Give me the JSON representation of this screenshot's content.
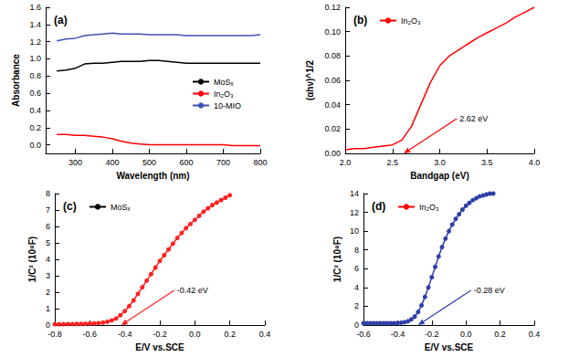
{
  "chart_data": [
    {
      "type": "line",
      "panel": "(a)",
      "x_label": "Wavelength (nm)",
      "y_label": "Absorbance",
      "marker": "none",
      "line_style": "solid",
      "grid": false,
      "legend": "middle right",
      "x": [
        250,
        275,
        300,
        325,
        350,
        375,
        400,
        425,
        450,
        475,
        500,
        525,
        550,
        575,
        600,
        625,
        650,
        675,
        700,
        725,
        750,
        775,
        800
      ],
      "series": [
        {
          "name": "MoSₓ",
          "color": "#000000",
          "values": [
            0.86,
            0.87,
            0.89,
            0.94,
            0.95,
            0.95,
            0.96,
            0.97,
            0.97,
            0.97,
            0.98,
            0.98,
            0.97,
            0.96,
            0.95,
            0.95,
            0.95,
            0.95,
            0.95,
            0.95,
            0.95,
            0.95,
            0.95
          ]
        },
        {
          "name": "In₂O₃",
          "color": "#ff0000",
          "values": [
            0.12,
            0.12,
            0.11,
            0.11,
            0.1,
            0.09,
            0.07,
            0.04,
            0.02,
            0.01,
            0.0,
            0.0,
            0.0,
            0.0,
            0.0,
            0.0,
            0.0,
            0.0,
            0.0,
            -0.01,
            -0.01,
            -0.01,
            -0.01
          ]
        },
        {
          "name": "10-MIO",
          "color": "#3f51b5",
          "values": [
            1.21,
            1.23,
            1.24,
            1.27,
            1.28,
            1.29,
            1.3,
            1.29,
            1.29,
            1.29,
            1.28,
            1.28,
            1.28,
            1.28,
            1.27,
            1.27,
            1.27,
            1.27,
            1.27,
            1.27,
            1.27,
            1.27,
            1.28
          ]
        }
      ],
      "xlim": [
        220,
        800
      ],
      "xticks": [
        300,
        400,
        500,
        600,
        700,
        800
      ],
      "ylim": [
        -0.1,
        1.6
      ],
      "yticks": [
        {
          "value": 0,
          "label": "0.0"
        },
        0.2,
        0.4,
        0.6,
        0.8,
        {
          "value": 1,
          "label": "1.0"
        },
        1.2,
        1.4,
        1.6
      ]
    },
    {
      "type": "line",
      "panel": "(b)",
      "x_label": "Bandgap (eV)",
      "y_label": "(αhν)^1/2",
      "marker": "none",
      "line_style": "solid",
      "grid": false,
      "legend": "upper left",
      "x": [
        2.0,
        2.1,
        2.2,
        2.3,
        2.4,
        2.5,
        2.6,
        2.7,
        2.8,
        2.9,
        3.0,
        3.1,
        3.2,
        3.3,
        3.4,
        3.5,
        3.6,
        3.7,
        3.8,
        3.9,
        4.0
      ],
      "series": [
        {
          "name": "In₂O₃",
          "color": "#ff0000",
          "values": [
            0.003,
            0.004,
            0.004,
            0.005,
            0.006,
            0.007,
            0.011,
            0.022,
            0.04,
            0.058,
            0.072,
            0.08,
            0.085,
            0.09,
            0.095,
            0.099,
            0.103,
            0.107,
            0.112,
            0.116,
            0.12
          ]
        }
      ],
      "annotation": {
        "text": "2.62 eV",
        "x": 2.62,
        "y": 0
      },
      "xlim": [
        2,
        4
      ],
      "xticks": [
        {
          "value": 2,
          "label": "2.0"
        },
        2.5,
        {
          "value": 3,
          "label": "3.0"
        },
        3.5,
        {
          "value": 4,
          "label": "4.0"
        }
      ],
      "ylim": [
        0,
        0.12
      ],
      "yticks": [
        {
          "value": 0,
          "label": "0.00"
        },
        0.02,
        0.04,
        0.06,
        0.08,
        {
          "value": 0.1,
          "label": "0.10"
        },
        0.12
      ]
    },
    {
      "type": "line",
      "panel": "(c)",
      "x_label": "E/V vs.SCE",
      "y_label": "1/C² (10⁸F)",
      "marker": "circle",
      "line_style": "solid",
      "grid": false,
      "legend": "upper left",
      "x": [
        -0.8,
        -0.775,
        -0.75,
        -0.725,
        -0.7,
        -0.675,
        -0.65,
        -0.625,
        -0.6,
        -0.575,
        -0.55,
        -0.525,
        -0.5,
        -0.475,
        -0.45,
        -0.425,
        -0.4,
        -0.375,
        -0.35,
        -0.325,
        -0.3,
        -0.275,
        -0.25,
        -0.225,
        -0.2,
        -0.175,
        -0.15,
        -0.125,
        -0.1,
        -0.075,
        -0.05,
        -0.025,
        0,
        0.025,
        0.05,
        0.075,
        0.1,
        0.125,
        0.15,
        0.175,
        0.2
      ],
      "series": [
        {
          "name": "MoSₓ",
          "color": "#ff2020",
          "values": [
            0.05,
            0.05,
            0.05,
            0.06,
            0.06,
            0.07,
            0.07,
            0.08,
            0.09,
            0.1,
            0.12,
            0.15,
            0.2,
            0.28,
            0.4,
            0.6,
            0.85,
            1.15,
            1.5,
            1.9,
            2.3,
            2.7,
            3.1,
            3.5,
            3.9,
            4.25,
            4.6,
            4.95,
            5.3,
            5.6,
            5.9,
            6.15,
            6.4,
            6.65,
            6.9,
            7.1,
            7.3,
            7.45,
            7.6,
            7.75,
            7.9
          ]
        }
      ],
      "annotation": {
        "text": "-0.42 eV",
        "x": -0.42,
        "y": 0
      },
      "xlim": [
        -0.8,
        0.4
      ],
      "xticks": [
        -0.8,
        -0.6,
        -0.4,
        -0.2,
        {
          "value": 0,
          "label": "0.0"
        },
        0.2,
        0.4
      ],
      "ylim": [
        0,
        8
      ],
      "yticks": [
        0,
        1,
        2,
        3,
        4,
        5,
        6,
        7,
        8
      ]
    },
    {
      "type": "line",
      "panel": "(d)",
      "x_label": "E/V vs.SCE",
      "y_label": "1/C² (10⁸F)",
      "marker": "circle",
      "line_style": "solid",
      "grid": false,
      "legend": "upper left",
      "x": [
        -0.6,
        -0.58,
        -0.56,
        -0.54,
        -0.52,
        -0.5,
        -0.48,
        -0.46,
        -0.44,
        -0.42,
        -0.4,
        -0.38,
        -0.36,
        -0.34,
        -0.32,
        -0.3,
        -0.28,
        -0.26,
        -0.24,
        -0.22,
        -0.2,
        -0.18,
        -0.16,
        -0.14,
        -0.12,
        -0.1,
        -0.08,
        -0.06,
        -0.04,
        -0.02,
        0,
        0.02,
        0.04,
        0.06,
        0.08,
        0.1,
        0.12,
        0.14,
        0.16
      ],
      "series": [
        {
          "name": "In₂O₃",
          "color": "#2f3fa8",
          "values": [
            0.2,
            0.2,
            0.2,
            0.2,
            0.2,
            0.2,
            0.2,
            0.2,
            0.2,
            0.2,
            0.22,
            0.25,
            0.3,
            0.4,
            0.6,
            0.9,
            1.4,
            2.1,
            3.0,
            4.0,
            5.1,
            6.2,
            7.3,
            8.3,
            9.2,
            10.0,
            10.7,
            11.3,
            11.8,
            12.3,
            12.7,
            13.0,
            13.3,
            13.5,
            13.7,
            13.8,
            13.9,
            14.0,
            14.0
          ]
        }
      ],
      "annotation": {
        "text": "-0.28 eV",
        "x": -0.28,
        "y": 0
      },
      "xlim": [
        -0.6,
        0.4
      ],
      "xticks": [
        -0.6,
        -0.4,
        -0.2,
        {
          "value": 0,
          "label": "0.0"
        },
        0.2,
        0.4
      ],
      "ylim": [
        0,
        14
      ],
      "yticks": [
        0,
        2,
        4,
        6,
        8,
        10,
        12,
        14
      ]
    }
  ]
}
